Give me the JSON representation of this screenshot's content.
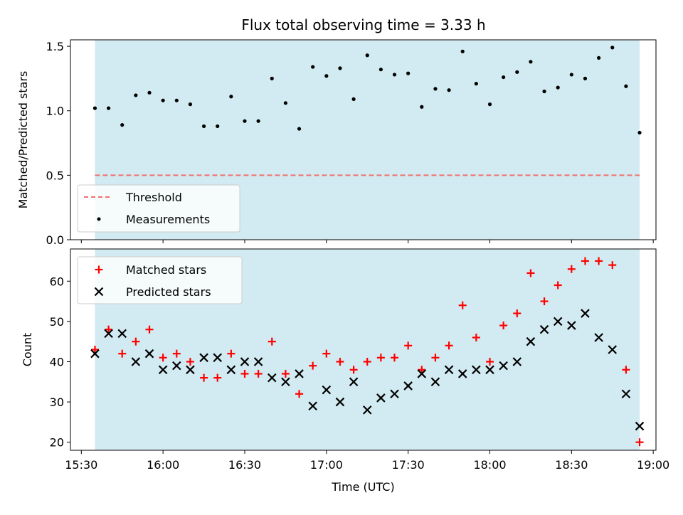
{
  "chart_data": {
    "type": "scatter",
    "title": "Flux total observing time = 3.33 h",
    "colors": {
      "observing_window": "#add8e6",
      "threshold": "#f07070",
      "measurements": "#000000",
      "matched": "#ff0000",
      "predicted": "#000000"
    },
    "observing_window": [
      "15:35",
      "18:55"
    ],
    "times": [
      "15:35",
      "15:40",
      "15:45",
      "15:50",
      "15:55",
      "16:00",
      "16:05",
      "16:10",
      "16:15",
      "16:20",
      "16:25",
      "16:30",
      "16:35",
      "16:40",
      "16:45",
      "16:50",
      "16:55",
      "17:00",
      "17:05",
      "17:10",
      "17:15",
      "17:20",
      "17:25",
      "17:30",
      "17:35",
      "17:40",
      "17:45",
      "17:50",
      "17:55",
      "18:00",
      "18:05",
      "18:10",
      "18:15",
      "18:20",
      "18:25",
      "18:30",
      "18:35",
      "18:40",
      "18:45",
      "18:50",
      "18:55"
    ],
    "top": {
      "ylabel": "Matched/Predicted stars",
      "ylim": [
        0,
        1.55
      ],
      "yticks": [
        0.0,
        0.5,
        1.0,
        1.5
      ],
      "ytick_labels": [
        "0.0",
        "0.5",
        "1.0",
        "1.5"
      ],
      "threshold": 0.5,
      "legend": [
        "Threshold",
        "Measurements"
      ],
      "legend_position": "lower-left",
      "ratio": [
        1.02,
        1.02,
        0.89,
        1.12,
        1.14,
        1.08,
        1.08,
        1.05,
        0.88,
        0.88,
        1.11,
        0.92,
        0.92,
        1.25,
        1.06,
        0.86,
        1.34,
        1.27,
        1.33,
        1.09,
        1.43,
        1.32,
        1.28,
        1.29,
        1.03,
        1.17,
        1.16,
        1.46,
        1.21,
        1.05,
        1.26,
        1.3,
        1.38,
        1.15,
        1.18,
        1.28,
        1.25,
        1.41,
        1.49,
        1.19,
        0.83
      ]
    },
    "bottom": {
      "ylabel": "Count",
      "xlabel": "Time (UTC)",
      "ylim": [
        18,
        68
      ],
      "yticks": [
        20,
        30,
        40,
        50,
        60
      ],
      "ytick_labels": [
        "20",
        "30",
        "40",
        "50",
        "60"
      ],
      "legend": [
        "Matched stars",
        "Predicted stars"
      ],
      "legend_position": "upper-left",
      "matched": [
        43,
        48,
        42,
        45,
        48,
        41,
        42,
        40,
        36,
        36,
        42,
        37,
        37,
        45,
        37,
        32,
        39,
        42,
        40,
        38,
        40,
        41,
        41,
        44,
        38,
        41,
        44,
        54,
        46,
        40,
        49,
        52,
        62,
        55,
        59,
        63,
        65,
        65,
        64,
        38,
        20
      ],
      "predicted": [
        42,
        47,
        47,
        40,
        42,
        38,
        39,
        38,
        41,
        41,
        38,
        40,
        40,
        36,
        35,
        37,
        29,
        33,
        30,
        35,
        28,
        31,
        32,
        34,
        37,
        35,
        38,
        37,
        38,
        38,
        39,
        40,
        45,
        48,
        50,
        49,
        52,
        46,
        43,
        32,
        24
      ]
    },
    "xlim": [
      "15:26",
      "19:01"
    ],
    "xticks": [
      "15:30",
      "16:00",
      "16:30",
      "17:00",
      "17:30",
      "18:00",
      "18:30",
      "19:00"
    ],
    "xtick_labels": [
      "15:30",
      "16:00",
      "16:30",
      "17:00",
      "17:30",
      "18:00",
      "18:30",
      "19:00"
    ]
  }
}
